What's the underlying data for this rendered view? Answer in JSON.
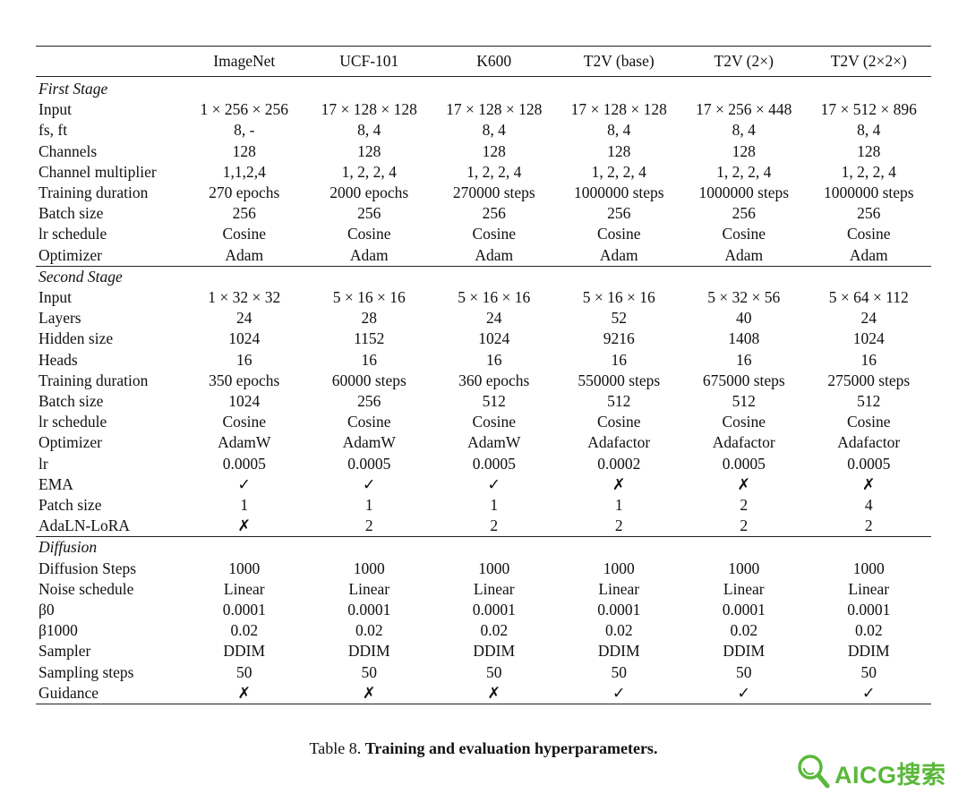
{
  "table": {
    "corner": "",
    "columns": [
      "ImageNet",
      "UCF-101",
      "K600",
      "T2V (base)",
      "T2V (2×)",
      "T2V (2×2×)"
    ],
    "sections": [
      {
        "title": "First Stage",
        "rows": [
          {
            "label": "Input",
            "values": [
              "1 × 256 × 256",
              "17 × 128 × 128",
              "17 × 128 × 128",
              "17 × 128 × 128",
              "17 × 256 × 448",
              "17 × 512 × 896"
            ]
          },
          {
            "label": "fs, ft",
            "values": [
              "8, -",
              "8, 4",
              "8, 4",
              "8, 4",
              "8, 4",
              "8, 4"
            ]
          },
          {
            "label": "Channels",
            "values": [
              "128",
              "128",
              "128",
              "128",
              "128",
              "128"
            ]
          },
          {
            "label": "Channel multiplier",
            "values": [
              "1,1,2,4",
              "1, 2, 2, 4",
              "1, 2, 2, 4",
              "1, 2, 2, 4",
              "1, 2, 2, 4",
              "1, 2, 2, 4"
            ]
          },
          {
            "label": "Training duration",
            "values": [
              "270 epochs",
              "2000 epochs",
              "270000 steps",
              "1000000 steps",
              "1000000 steps",
              "1000000 steps"
            ]
          },
          {
            "label": "Batch size",
            "values": [
              "256",
              "256",
              "256",
              "256",
              "256",
              "256"
            ]
          },
          {
            "label": "lr schedule",
            "values": [
              "Cosine",
              "Cosine",
              "Cosine",
              "Cosine",
              "Cosine",
              "Cosine"
            ]
          },
          {
            "label": "Optimizer",
            "values": [
              "Adam",
              "Adam",
              "Adam",
              "Adam",
              "Adam",
              "Adam"
            ]
          }
        ]
      },
      {
        "title": "Second Stage",
        "rows": [
          {
            "label": "Input",
            "values": [
              "1 × 32 × 32",
              "5 × 16 × 16",
              "5 × 16 × 16",
              "5 × 16 × 16",
              "5 × 32 × 56",
              "5 × 64 × 112"
            ]
          },
          {
            "label": "Layers",
            "values": [
              "24",
              "28",
              "24",
              "52",
              "40",
              "24"
            ]
          },
          {
            "label": "Hidden size",
            "values": [
              "1024",
              "1152",
              "1024",
              "9216",
              "1408",
              "1024"
            ]
          },
          {
            "label": "Heads",
            "values": [
              "16",
              "16",
              "16",
              "16",
              "16",
              "16"
            ]
          },
          {
            "label": "Training duration",
            "values": [
              "350 epochs",
              "60000 steps",
              "360 epochs",
              "550000 steps",
              "675000 steps",
              "275000 steps"
            ]
          },
          {
            "label": "Batch size",
            "values": [
              "1024",
              "256",
              "512",
              "512",
              "512",
              "512"
            ]
          },
          {
            "label": "lr schedule",
            "values": [
              "Cosine",
              "Cosine",
              "Cosine",
              "Cosine",
              "Cosine",
              "Cosine"
            ]
          },
          {
            "label": "Optimizer",
            "values": [
              "AdamW",
              "AdamW",
              "AdamW",
              "Adafactor",
              "Adafactor",
              "Adafactor"
            ]
          },
          {
            "label": "lr",
            "values": [
              "0.0005",
              "0.0005",
              "0.0005",
              "0.0002",
              "0.0005",
              "0.0005"
            ]
          },
          {
            "label": "EMA",
            "values": [
              "✓",
              "✓",
              "✓",
              "✗",
              "✗",
              "✗"
            ]
          },
          {
            "label": "Patch size",
            "values": [
              "1",
              "1",
              "1",
              "1",
              "2",
              "4"
            ]
          },
          {
            "label": "AdaLN-LoRA",
            "values": [
              "✗",
              "2",
              "2",
              "2",
              "2",
              "2"
            ]
          }
        ]
      },
      {
        "title": "Diffusion",
        "rows": [
          {
            "label": "Diffusion Steps",
            "values": [
              "1000",
              "1000",
              "1000",
              "1000",
              "1000",
              "1000"
            ]
          },
          {
            "label": "Noise schedule",
            "values": [
              "Linear",
              "Linear",
              "Linear",
              "Linear",
              "Linear",
              "Linear"
            ]
          },
          {
            "label": "β0",
            "values": [
              "0.0001",
              "0.0001",
              "0.0001",
              "0.0001",
              "0.0001",
              "0.0001"
            ]
          },
          {
            "label": "β1000",
            "values": [
              "0.02",
              "0.02",
              "0.02",
              "0.02",
              "0.02",
              "0.02"
            ]
          },
          {
            "label": "Sampler",
            "values": [
              "DDIM",
              "DDIM",
              "DDIM",
              "DDIM",
              "DDIM",
              "DDIM"
            ]
          },
          {
            "label": "Sampling steps",
            "values": [
              "50",
              "50",
              "50",
              "50",
              "50",
              "50"
            ]
          },
          {
            "label": "Guidance",
            "values": [
              "✗",
              "✗",
              "✗",
              "✓",
              "✓",
              "✓"
            ]
          }
        ]
      }
    ]
  },
  "caption": {
    "prefix": "Table 8.",
    "title": "Training and evaluation hyperparameters."
  },
  "watermark": {
    "text": "AICG搜索",
    "color": "#5ab83a",
    "icon": "magnifier-icon"
  }
}
